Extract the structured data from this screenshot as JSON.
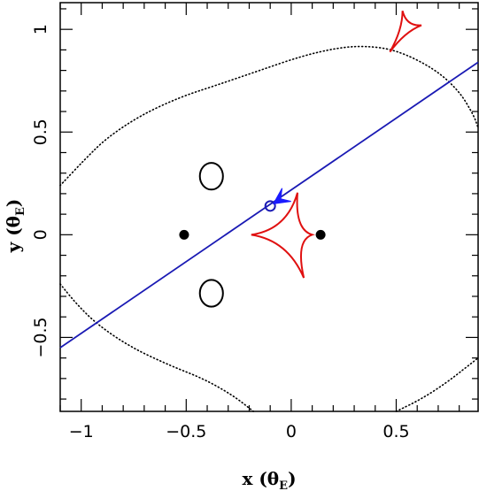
{
  "chart_data": {
    "type": "scatter",
    "title": "",
    "xlabel": {
      "text": "x (θ",
      "sub": "E",
      "close": ")"
    },
    "ylabel": {
      "text": "y (θ",
      "sub": "E",
      "close": ")"
    },
    "xlim": [
      -1.1,
      0.89
    ],
    "ylim": [
      -0.86,
      1.13
    ],
    "x_ticks": [
      {
        "value": -1,
        "label": "−1"
      },
      {
        "value": -0.5,
        "label": "−0.5"
      },
      {
        "value": 0,
        "label": "0"
      },
      {
        "value": 0.5,
        "label": "0.5"
      }
    ],
    "y_ticks": [
      {
        "value": -0.5,
        "label": "−0.5"
      },
      {
        "value": 0,
        "label": "0"
      },
      {
        "value": 0.5,
        "label": "0.5"
      },
      {
        "value": 1,
        "label": "1"
      }
    ],
    "grid": false,
    "lens_positions": [
      {
        "x": -0.51,
        "y": 0.0
      },
      {
        "x": 0.14,
        "y": 0.0
      }
    ],
    "critical_curves": [
      {
        "cx": -0.38,
        "cy": 0.285,
        "rx": 0.055,
        "ry": 0.065
      },
      {
        "cx": -0.38,
        "cy": -0.285,
        "rx": 0.055,
        "ry": 0.065
      }
    ],
    "caustic_central": [
      {
        "x": -0.19,
        "y": 0.0
      },
      {
        "x": 0.03,
        "y": 0.205
      },
      {
        "x": 0.1,
        "y": 0.0
      },
      {
        "x": 0.06,
        "y": -0.21
      }
    ],
    "caustic_planetary": [
      {
        "x": 0.47,
        "y": 0.89
      },
      {
        "x": 0.62,
        "y": 1.02
      },
      {
        "x": 0.53,
        "y": 1.09
      }
    ],
    "trajectory": [
      [
        -1.1,
        -0.55
      ],
      [
        0.89,
        0.84
      ]
    ],
    "source": {
      "x": -0.1,
      "y": 0.14
    },
    "direction_arrow": {
      "x": -0.05,
      "y": 0.175
    },
    "dotted_contour": [
      [
        -1.1,
        0.24
      ],
      [
        -0.98,
        0.37
      ],
      [
        -0.88,
        0.47
      ],
      [
        -0.72,
        0.58
      ],
      [
        -0.53,
        0.67
      ],
      [
        -0.35,
        0.73
      ],
      [
        -0.15,
        0.8
      ],
      [
        0.05,
        0.87
      ],
      [
        0.22,
        0.91
      ],
      [
        0.35,
        0.92
      ],
      [
        0.5,
        0.9
      ],
      [
        0.68,
        0.81
      ],
      [
        0.8,
        0.7
      ],
      [
        0.87,
        0.58
      ],
      [
        0.89,
        0.52
      ]
    ],
    "dotted_contour_lower": [
      [
        -1.1,
        -0.24
      ],
      [
        -1.02,
        -0.34
      ],
      [
        -0.92,
        -0.44
      ],
      [
        -0.76,
        -0.55
      ],
      [
        -0.57,
        -0.64
      ],
      [
        -0.42,
        -0.7
      ],
      [
        -0.28,
        -0.78
      ],
      [
        -0.18,
        -0.86
      ]
    ],
    "dotted_contour_lower_right": [
      [
        0.5,
        -0.86
      ],
      [
        0.62,
        -0.8
      ],
      [
        0.74,
        -0.72
      ],
      [
        0.84,
        -0.64
      ],
      [
        0.89,
        -0.6
      ]
    ],
    "colors": {
      "axes": "#000000",
      "trajectory": "#1a1ab4",
      "caustic": "#e01010",
      "critical": "#000000",
      "lens": "#000000",
      "source": "#1a1ab4",
      "arrow": "#1a1aff"
    }
  }
}
